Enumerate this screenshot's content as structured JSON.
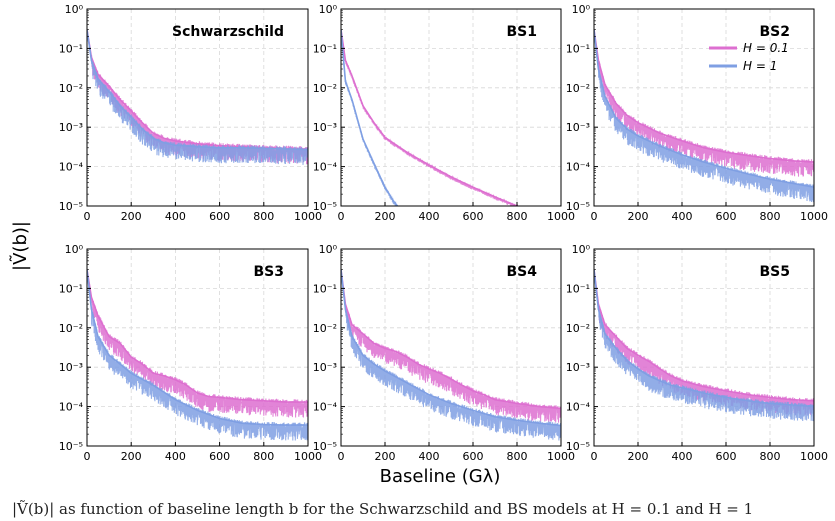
{
  "figure": {
    "xlabel": "Baseline (Gλ)",
    "ylabel": "|Ṽ(b)|",
    "caption": "|Ṽ(b)| as function of baseline length b for the Schwarzschild and BS models at H = 0.1 and H = 1"
  },
  "colors": {
    "h01": "#dd6fd0",
    "h1": "#7f9fe3",
    "overlap": "#7a55c8"
  },
  "chart_data": [
    {
      "type": "line",
      "title": "Schwarzschild",
      "xlim": [
        0,
        1000
      ],
      "ylim": [
        1e-05,
        1
      ],
      "yscale": "log",
      "grid": true,
      "xticks": [
        "0",
        "200",
        "400",
        "600",
        "800",
        "1000"
      ],
      "yticks": [
        "10⁻⁵",
        "10⁻⁴",
        "10⁻³",
        "10⁻²",
        "10⁻¹",
        "10⁰"
      ],
      "series": [
        {
          "name": "H = 0.1",
          "x": [
            0,
            20,
            50,
            100,
            150,
            200,
            250,
            300,
            350,
            400,
            500,
            600,
            700,
            800,
            900,
            1000
          ],
          "y": [
            0.3,
            0.06,
            0.022,
            0.011,
            0.005,
            0.0026,
            0.0013,
            0.0007,
            0.00052,
            0.00045,
            0.00038,
            0.00034,
            0.00032,
            0.0003,
            0.00029,
            0.00028
          ]
        },
        {
          "name": "H = 1",
          "x": [
            0,
            20,
            50,
            100,
            150,
            200,
            250,
            300,
            350,
            400,
            500,
            600,
            700,
            800,
            900,
            1000
          ],
          "y": [
            0.3,
            0.05,
            0.017,
            0.008,
            0.0035,
            0.0018,
            0.0009,
            0.00052,
            0.0004,
            0.00035,
            0.00032,
            0.0003,
            0.0003,
            0.00029,
            0.00028,
            0.00027
          ]
        }
      ]
    },
    {
      "type": "line",
      "title": "BS1",
      "xlim": [
        0,
        1000
      ],
      "ylim": [
        1e-05,
        1
      ],
      "yscale": "log",
      "grid": true,
      "xticks": [
        "0",
        "200",
        "400",
        "600",
        "800",
        "1000"
      ],
      "yticks": [
        "10⁻⁵",
        "10⁻⁴",
        "10⁻³",
        "10⁻²",
        "10⁻¹",
        "10⁰"
      ],
      "series": [
        {
          "name": "H = 0.1",
          "x": [
            0,
            20,
            50,
            100,
            150,
            200,
            300,
            400,
            500,
            600,
            700,
            800,
            820
          ],
          "y": [
            0.3,
            0.05,
            0.02,
            0.0035,
            0.0013,
            0.00055,
            0.00023,
            0.00011,
            5.5e-05,
            3e-05,
            1.7e-05,
            1e-05,
            9.5e-06
          ]
        },
        {
          "name": "H = 1",
          "x": [
            0,
            20,
            50,
            100,
            150,
            200,
            240,
            260
          ],
          "y": [
            0.3,
            0.015,
            0.005,
            0.0005,
            0.00012,
            3e-05,
            1.3e-05,
            9.5e-06
          ]
        }
      ]
    },
    {
      "type": "line",
      "title": "BS2",
      "xlim": [
        0,
        1000
      ],
      "ylim": [
        1e-05,
        1
      ],
      "yscale": "log",
      "grid": true,
      "legend": "top-right",
      "xticks": [
        "0",
        "200",
        "400",
        "600",
        "800",
        "1000"
      ],
      "yticks": [
        "10⁻⁵",
        "10⁻⁴",
        "10⁻³",
        "10⁻²",
        "10⁻¹",
        "10⁰"
      ],
      "series": [
        {
          "name": "H = 0.1",
          "x": [
            0,
            20,
            50,
            100,
            150,
            200,
            300,
            400,
            500,
            600,
            700,
            800,
            900,
            1000
          ],
          "y": [
            0.3,
            0.05,
            0.012,
            0.004,
            0.002,
            0.0013,
            0.0007,
            0.00045,
            0.0003,
            0.00023,
            0.00019,
            0.00016,
            0.00014,
            0.00013
          ]
        },
        {
          "name": "H = 1",
          "x": [
            0,
            20,
            50,
            100,
            150,
            200,
            300,
            400,
            500,
            600,
            700,
            800,
            900,
            1000
          ],
          "y": [
            0.3,
            0.03,
            0.006,
            0.0017,
            0.0009,
            0.0006,
            0.00033,
            0.0002,
            0.00013,
            9e-05,
            6.5e-05,
            4.8e-05,
            3.8e-05,
            3e-05
          ]
        }
      ]
    },
    {
      "type": "line",
      "title": "BS3",
      "xlim": [
        0,
        1000
      ],
      "ylim": [
        1e-05,
        1
      ],
      "yscale": "log",
      "grid": true,
      "xticks": [
        "0",
        "200",
        "400",
        "600",
        "800",
        "1000"
      ],
      "yticks": [
        "10⁻⁵",
        "10⁻⁴",
        "10⁻³",
        "10⁻²",
        "10⁻¹",
        "10⁰"
      ],
      "series": [
        {
          "name": "H = 0.1",
          "x": [
            0,
            20,
            50,
            100,
            150,
            200,
            250,
            300,
            350,
            400,
            450,
            500,
            550,
            600,
            700,
            800,
            900,
            1000
          ],
          "y": [
            0.3,
            0.06,
            0.02,
            0.006,
            0.004,
            0.0018,
            0.0012,
            0.0007,
            0.0006,
            0.00048,
            0.00035,
            0.00022,
            0.00018,
            0.00017,
            0.00015,
            0.00014,
            0.00013,
            0.00013
          ]
        },
        {
          "name": "H = 1",
          "x": [
            0,
            20,
            50,
            100,
            150,
            200,
            300,
            400,
            500,
            600,
            700,
            800,
            900,
            1000
          ],
          "y": [
            0.3,
            0.03,
            0.006,
            0.002,
            0.0012,
            0.0007,
            0.00035,
            0.00015,
            8e-05,
            5e-05,
            3.8e-05,
            3.5e-05,
            3.4e-05,
            3.4e-05
          ]
        }
      ]
    },
    {
      "type": "line",
      "title": "BS4",
      "xlim": [
        0,
        1000
      ],
      "ylim": [
        1e-05,
        1
      ],
      "yscale": "log",
      "grid": true,
      "xticks": [
        "0",
        "200",
        "400",
        "600",
        "800",
        "1000"
      ],
      "yticks": [
        "10⁻⁵",
        "10⁻⁴",
        "10⁻³",
        "10⁻²",
        "10⁻¹",
        "10⁰"
      ],
      "series": [
        {
          "name": "H = 0.1",
          "x": [
            0,
            20,
            50,
            100,
            150,
            200,
            250,
            300,
            350,
            400,
            450,
            500,
            550,
            600,
            650,
            700,
            800,
            900,
            1000
          ],
          "y": [
            0.3,
            0.04,
            0.012,
            0.007,
            0.004,
            0.003,
            0.0025,
            0.0018,
            0.0012,
            0.0009,
            0.0007,
            0.0005,
            0.00035,
            0.00025,
            0.0002,
            0.00015,
            0.00012,
            0.0001,
            9e-05
          ]
        },
        {
          "name": "H = 1",
          "x": [
            0,
            20,
            50,
            100,
            150,
            200,
            300,
            400,
            500,
            600,
            700,
            800,
            900,
            1000
          ],
          "y": [
            0.3,
            0.03,
            0.006,
            0.002,
            0.0012,
            0.0008,
            0.0004,
            0.0002,
            0.00012,
            8e-05,
            5.5e-05,
            4.5e-05,
            3.8e-05,
            3.3e-05
          ]
        }
      ]
    },
    {
      "type": "line",
      "title": "BS5",
      "xlim": [
        0,
        1000
      ],
      "ylim": [
        1e-05,
        1
      ],
      "yscale": "log",
      "grid": true,
      "xticks": [
        "0",
        "200",
        "400",
        "600",
        "800",
        "1000"
      ],
      "yticks": [
        "10⁻⁵",
        "10⁻⁴",
        "10⁻³",
        "10⁻²",
        "10⁻¹",
        "10⁰"
      ],
      "series": [
        {
          "name": "H = 0.1",
          "x": [
            0,
            20,
            50,
            100,
            150,
            200,
            250,
            300,
            350,
            400,
            500,
            600,
            700,
            800,
            900,
            1000
          ],
          "y": [
            0.3,
            0.04,
            0.012,
            0.006,
            0.003,
            0.002,
            0.0014,
            0.0009,
            0.0006,
            0.00045,
            0.00032,
            0.00025,
            0.0002,
            0.00017,
            0.00015,
            0.00014
          ]
        },
        {
          "name": "H = 1",
          "x": [
            0,
            20,
            50,
            100,
            150,
            200,
            250,
            300,
            350,
            400,
            500,
            600,
            700,
            800,
            900,
            1000
          ],
          "y": [
            0.3,
            0.03,
            0.007,
            0.003,
            0.0015,
            0.0009,
            0.0006,
            0.00045,
            0.00035,
            0.0003,
            0.00022,
            0.00017,
            0.00014,
            0.00012,
            0.00011,
            0.0001
          ]
        }
      ]
    }
  ]
}
